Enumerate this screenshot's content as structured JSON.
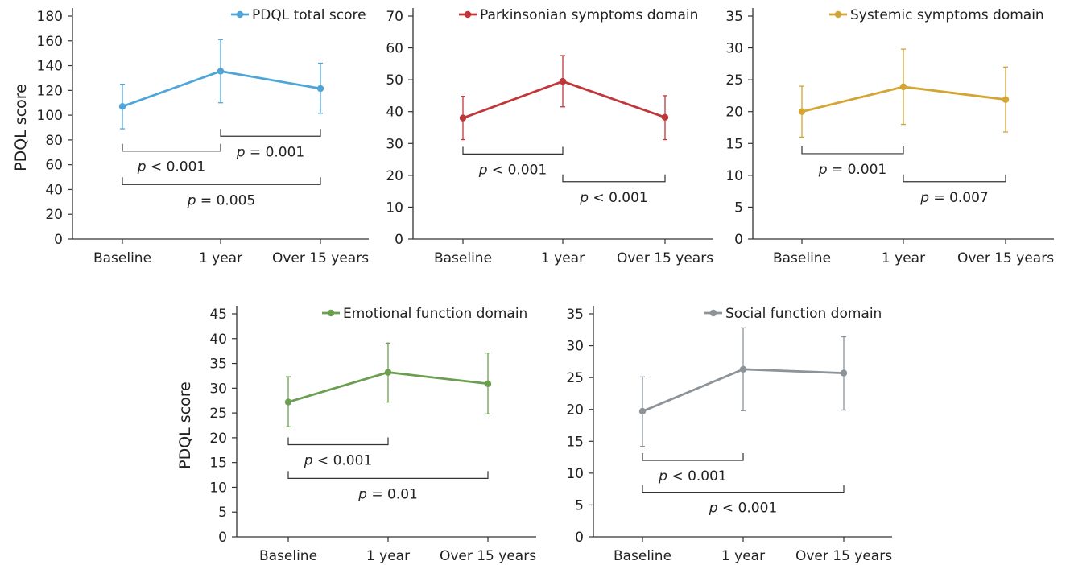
{
  "chart_data": [
    {
      "type": "line",
      "legend": "PDQL total score",
      "ylabel": "PDQL score",
      "color": "#4ea6d8",
      "categories": [
        "Baseline",
        "1 year",
        "Over 15 years"
      ],
      "values": [
        107,
        135.5,
        121.5
      ],
      "error_low": [
        89,
        110,
        101.5
      ],
      "error_high": [
        125,
        161,
        142
      ],
      "ylim": [
        0,
        180
      ],
      "yticks": [
        0,
        20,
        40,
        60,
        80,
        100,
        120,
        140,
        160,
        180
      ],
      "brackets": [
        {
          "from": 0,
          "to": 1,
          "y": 71,
          "label_p": "p",
          "label_rest": " < 0.001"
        },
        {
          "from": 1,
          "to": 2,
          "y": 83,
          "label_p": "p",
          "label_rest": " = 0.001"
        },
        {
          "from": 0,
          "to": 2,
          "y": 44,
          "label_p": "p",
          "label_rest": " = 0.005"
        }
      ]
    },
    {
      "type": "line",
      "legend": "Parkinsonian symptoms domain",
      "ylabel": "",
      "color": "#c0373a",
      "categories": [
        "Baseline",
        "1 year",
        "Over 15 years"
      ],
      "values": [
        38,
        49.5,
        38.2
      ],
      "error_low": [
        31.2,
        41.5,
        31.2
      ],
      "error_high": [
        44.8,
        57.6,
        45
      ],
      "ylim": [
        0,
        70
      ],
      "yticks": [
        0,
        10,
        20,
        30,
        40,
        50,
        60,
        70
      ],
      "brackets": [
        {
          "from": 0,
          "to": 1,
          "y": 26.7,
          "label_p": "p",
          "label_rest": " < 0.001"
        },
        {
          "from": 1,
          "to": 2,
          "y": 18,
          "label_p": "p",
          "label_rest": " < 0.001"
        }
      ]
    },
    {
      "type": "line",
      "legend": "Systemic symptoms domain",
      "ylabel": "",
      "color": "#d3a533",
      "categories": [
        "Baseline",
        "1 year",
        "Over 15 years"
      ],
      "values": [
        20,
        23.9,
        21.9
      ],
      "error_low": [
        16,
        18,
        16.8
      ],
      "error_high": [
        24,
        29.8,
        27
      ],
      "ylim": [
        0,
        35
      ],
      "yticks": [
        0,
        5,
        10,
        15,
        20,
        25,
        30,
        35
      ],
      "brackets": [
        {
          "from": 0,
          "to": 1,
          "y": 13.4,
          "label_p": "p",
          "label_rest": " = 0.001"
        },
        {
          "from": 1,
          "to": 2,
          "y": 9,
          "label_p": "p",
          "label_rest": " = 0.007"
        }
      ]
    },
    {
      "type": "line",
      "legend": "Emotional function domain",
      "ylabel": "PDQL score",
      "color": "#6c9e52",
      "categories": [
        "Baseline",
        "1 year",
        "Over 15 years"
      ],
      "values": [
        27.2,
        33.2,
        30.9
      ],
      "error_low": [
        22.2,
        27.2,
        24.8
      ],
      "error_high": [
        32.3,
        39.1,
        37.1
      ],
      "ylim": [
        0,
        45
      ],
      "yticks": [
        0,
        5,
        10,
        15,
        20,
        25,
        30,
        35,
        40,
        45
      ],
      "brackets": [
        {
          "from": 0,
          "to": 1,
          "y": 18.6,
          "label_p": "p",
          "label_rest": " < 0.001"
        },
        {
          "from": 0,
          "to": 2,
          "y": 11.8,
          "label_p": "p",
          "label_rest": " = 0.01"
        }
      ]
    },
    {
      "type": "line",
      "legend": "Social function domain",
      "ylabel": "",
      "color": "#8c9399",
      "categories": [
        "Baseline",
        "1 year",
        "Over 15 years"
      ],
      "values": [
        19.7,
        26.3,
        25.7
      ],
      "error_low": [
        14.2,
        19.8,
        19.9
      ],
      "error_high": [
        25.1,
        32.8,
        31.4
      ],
      "ylim": [
        0,
        35
      ],
      "yticks": [
        0,
        5,
        10,
        15,
        20,
        25,
        30,
        35
      ],
      "brackets": [
        {
          "from": 0,
          "to": 1,
          "y": 12,
          "label_p": "p",
          "label_rest": " < 0.001"
        },
        {
          "from": 0,
          "to": 2,
          "y": 7,
          "label_p": "p",
          "label_rest": " < 0.001"
        }
      ]
    }
  ]
}
